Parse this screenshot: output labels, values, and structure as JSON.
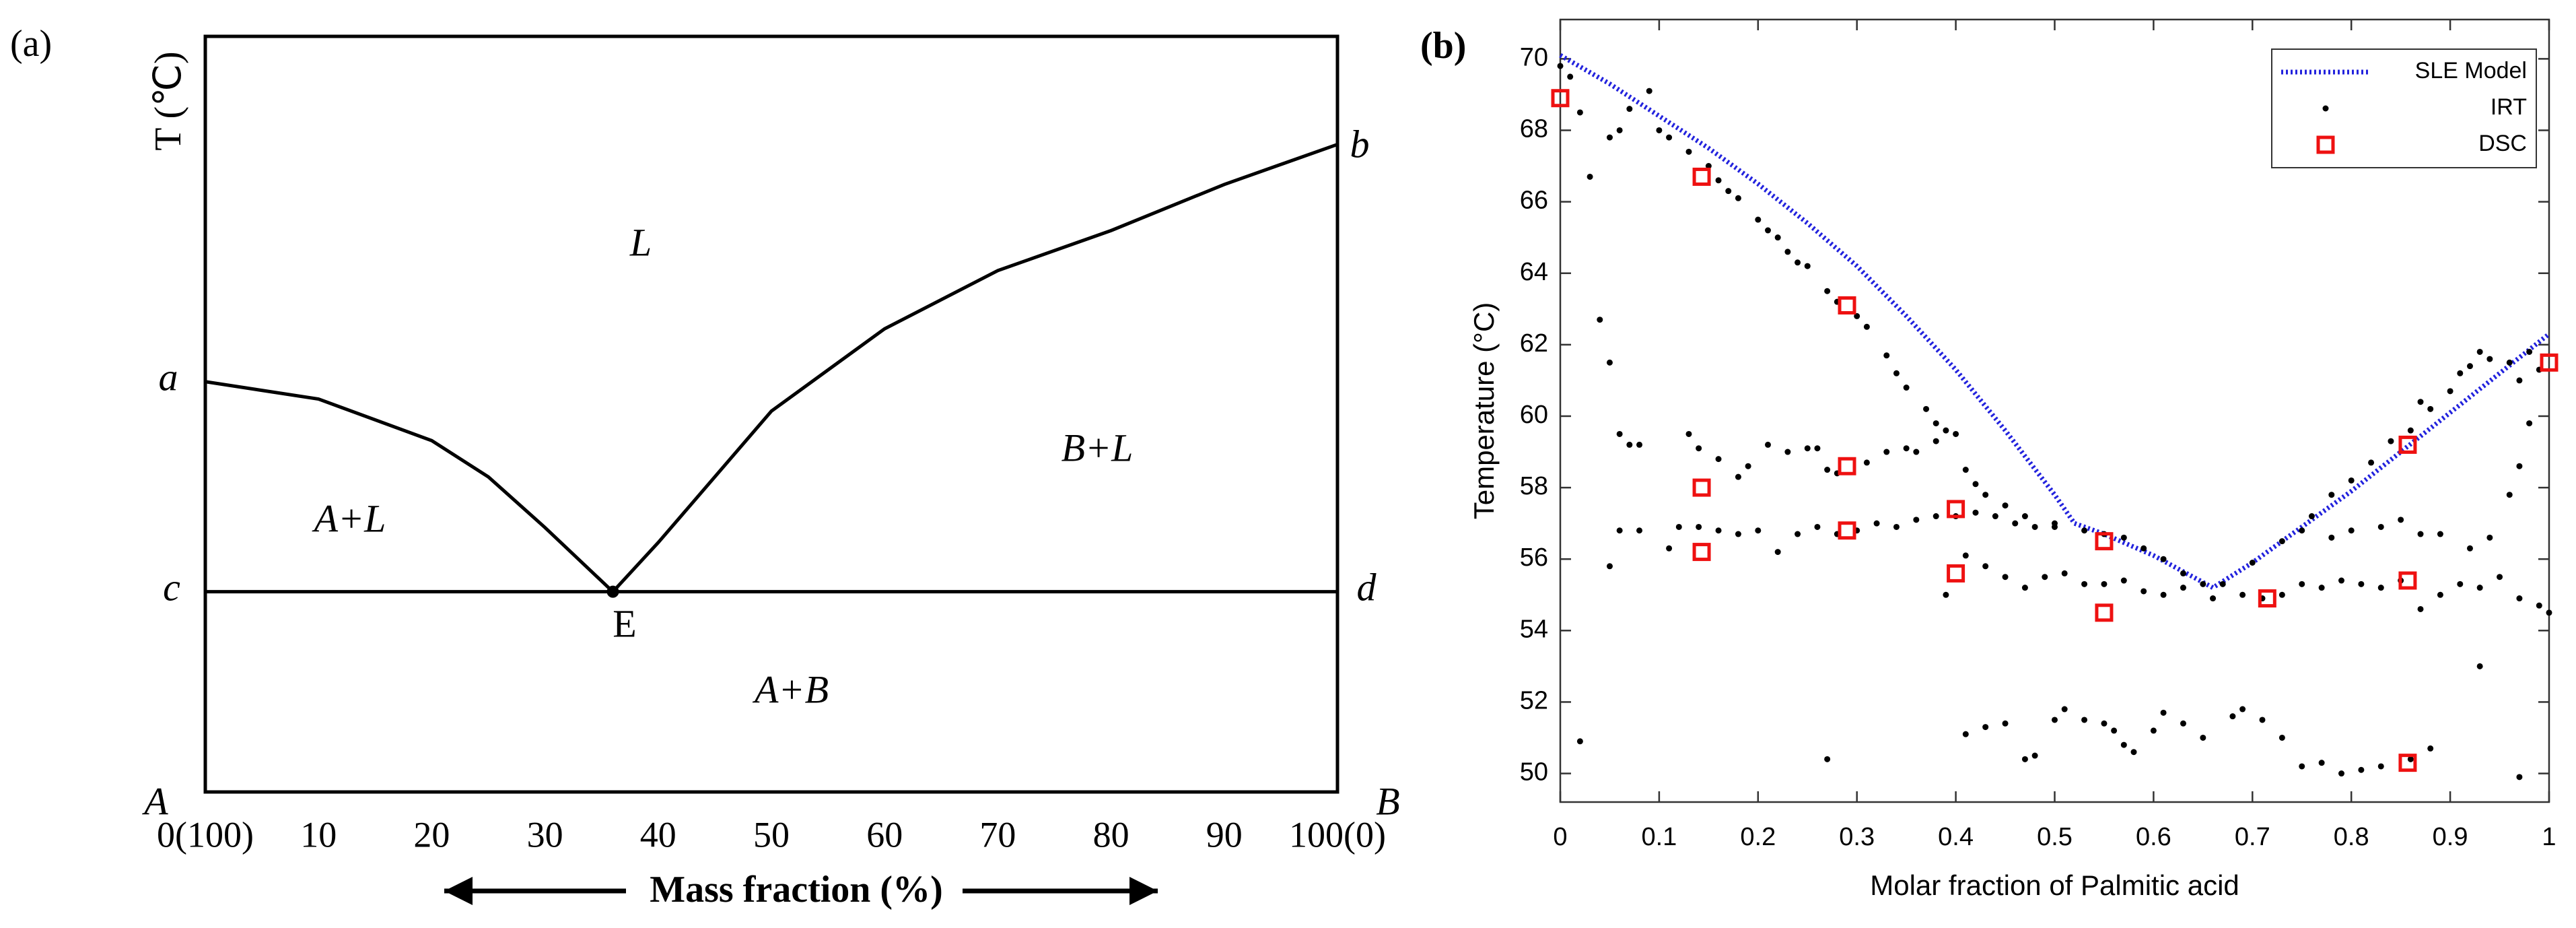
{
  "chart_data": [
    {
      "type": "phase-diagram",
      "panel": "(a)",
      "ylabel": "T (℃)",
      "xlabel": "Mass fraction (%)",
      "xlim": [
        0,
        100
      ],
      "ylim": [
        0,
        100
      ],
      "xticks": [
        {
          "value": 0,
          "label": "0(100)"
        },
        10,
        20,
        30,
        40,
        50,
        60,
        70,
        80,
        90,
        {
          "value": 100,
          "label": "100(0)"
        }
      ],
      "series": [
        {
          "color": "#000000",
          "x": [
            0,
            10,
            20,
            25,
            30,
            36
          ],
          "values": [
            54.3,
            52,
            46.5,
            41.7,
            35,
            26.5
          ]
        },
        {
          "color": "#000000",
          "x": [
            36,
            40,
            50,
            60,
            70,
            80,
            90,
            100
          ],
          "values": [
            26.5,
            33,
            50.4,
            61.3,
            69,
            74.3,
            80.4,
            85.7
          ]
        },
        {
          "color": "#000000",
          "x": [
            0,
            100
          ],
          "values": [
            26.5,
            26.5
          ]
        },
        {
          "color": "#000000",
          "marker": true,
          "x": [
            36
          ],
          "values": [
            26.5
          ]
        }
      ],
      "annotations": [
        "a",
        "b",
        "c",
        "d",
        "E",
        "L",
        "A+L",
        "B+L",
        "A+B",
        "A",
        "B"
      ]
    },
    {
      "type": "scatter",
      "panel": "(b)",
      "ylabel": "Temperature (°C)",
      "xlabel": "Molar fraction of Palmitic acid",
      "xlim": [
        0,
        1
      ],
      "ylim": [
        49.2,
        71.1
      ],
      "xticks": [
        0,
        0.1,
        0.2,
        0.3,
        0.4,
        0.5,
        0.6,
        0.7,
        0.8,
        0.9,
        1
      ],
      "yticks": [
        50,
        52,
        54,
        56,
        58,
        60,
        62,
        64,
        66,
        68,
        70
      ],
      "legend": "upper right",
      "series": [
        {
          "name": "SLE Model",
          "style": "dotted-line",
          "color": "#2222dd",
          "x": [
            0,
            0.05,
            0.1,
            0.15,
            0.2,
            0.25,
            0.3,
            0.35,
            0.4,
            0.45,
            0.5,
            0.52,
            0.55,
            0.6,
            0.66,
            0.7,
            0.75,
            0.8,
            0.85,
            0.9,
            0.95,
            1
          ],
          "values": [
            70.1,
            69.3,
            68.4,
            67.5,
            66.5,
            65.4,
            64.2,
            62.8,
            61.3,
            59.6,
            57.8,
            57.0,
            56.7,
            56.1,
            55.2,
            55.9,
            56.9,
            57.9,
            59.0,
            60.1,
            61.2,
            62.3
          ]
        },
        {
          "name": "IRT",
          "style": "dot",
          "color": "#000000",
          "x": [
            0,
            0.01,
            0.02,
            0.03,
            0.05,
            0.06,
            0.07,
            0.09,
            0.1,
            0.11,
            0.13,
            0.15,
            0.16,
            0.17,
            0.18,
            0.2,
            0.21,
            0.22,
            0.23,
            0.24,
            0.25,
            0.27,
            0.28,
            0.3,
            0.31,
            0.33,
            0.34,
            0.35,
            0.37,
            0.38,
            0.41,
            0.42,
            0.43,
            0.45,
            0.47,
            0.5,
            0.53,
            0.55,
            0.57,
            0.59,
            0.61,
            0.63,
            0.65,
            0.67,
            0.7,
            0.73,
            0.76,
            0.78,
            0.8,
            0.82,
            0.84,
            0.86,
            0.87,
            0.88,
            0.9,
            0.91,
            0.92,
            0.93,
            0.94,
            0.96,
            0.97,
            0.98,
            0.99,
            0.06,
            0.07,
            0.08,
            0.13,
            0.14,
            0.16,
            0.18,
            0.19,
            0.21,
            0.23,
            0.25,
            0.26,
            0.27,
            0.28,
            0.31,
            0.33,
            0.35,
            0.36,
            0.38,
            0.39,
            0.4,
            0.05,
            0.06,
            0.08,
            0.11,
            0.12,
            0.14,
            0.16,
            0.18,
            0.2,
            0.22,
            0.24,
            0.26,
            0.28,
            0.3,
            0.32,
            0.34,
            0.36,
            0.38,
            0.4,
            0.42,
            0.44,
            0.46,
            0.48,
            0.5,
            0.39,
            0.41,
            0.43,
            0.45,
            0.47,
            0.49,
            0.51,
            0.53,
            0.55,
            0.57,
            0.59,
            0.61,
            0.63,
            0.66,
            0.69,
            0.71,
            0.73,
            0.75,
            0.77,
            0.79,
            0.81,
            0.83,
            0.85,
            0.87,
            0.89,
            0.91,
            0.93,
            0.95,
            0.97,
            0.99,
            1.0,
            0.75,
            0.78,
            0.8,
            0.83,
            0.85,
            0.87,
            0.89,
            0.92,
            0.94,
            0.96,
            0.97,
            0.98,
            0.02,
            0.27,
            0.41,
            0.43,
            0.45,
            0.47,
            0.48,
            0.5,
            0.51,
            0.53,
            0.55,
            0.56,
            0.57,
            0.58,
            0.6,
            0.61,
            0.63,
            0.65,
            0.68,
            0.69,
            0.71,
            0.73,
            0.75,
            0.77,
            0.79,
            0.81,
            0.83,
            0.86,
            0.88,
            0.93,
            0.97,
            0.04,
            0.05
          ],
          "values": [
            69.8,
            69.5,
            68.5,
            66.7,
            67.8,
            68.0,
            68.6,
            69.1,
            68.0,
            67.8,
            67.4,
            67.0,
            66.6,
            66.3,
            66.1,
            65.5,
            65.2,
            65.0,
            64.6,
            64.3,
            64.2,
            63.5,
            63.2,
            62.8,
            62.5,
            61.7,
            61.2,
            60.8,
            60.2,
            59.8,
            58.5,
            58.1,
            57.8,
            57.5,
            57.2,
            57.0,
            56.8,
            56.7,
            56.6,
            56.3,
            56.0,
            55.6,
            55.3,
            55.3,
            55.9,
            56.5,
            57.2,
            57.8,
            58.2,
            58.7,
            59.3,
            59.6,
            60.4,
            60.2,
            60.7,
            61.2,
            61.4,
            61.8,
            61.6,
            61.5,
            61.0,
            61.8,
            61.3,
            59.5,
            59.2,
            59.2,
            59.5,
            59.1,
            58.8,
            58.3,
            58.6,
            59.2,
            59.0,
            59.1,
            59.1,
            58.5,
            58.4,
            58.7,
            59.0,
            59.1,
            59.0,
            59.3,
            59.6,
            59.5,
            55.8,
            56.8,
            56.8,
            56.3,
            56.9,
            56.9,
            56.8,
            56.7,
            56.8,
            56.2,
            56.7,
            56.9,
            56.7,
            56.8,
            57.0,
            56.9,
            57.1,
            57.2,
            57.2,
            57.3,
            57.2,
            57.0,
            56.9,
            56.9,
            55.0,
            56.1,
            55.8,
            55.5,
            55.2,
            55.5,
            55.6,
            55.3,
            55.3,
            55.4,
            55.1,
            55.0,
            55.2,
            54.9,
            55.0,
            54.9,
            55.0,
            55.3,
            55.2,
            55.4,
            55.3,
            55.2,
            55.4,
            54.6,
            55.0,
            55.3,
            55.2,
            55.5,
            54.9,
            54.7,
            54.5,
            56.8,
            56.6,
            56.8,
            56.9,
            57.1,
            56.7,
            56.7,
            56.3,
            56.6,
            57.8,
            58.6,
            59.8,
            50.9,
            50.4,
            51.1,
            51.3,
            51.4,
            50.4,
            50.5,
            51.5,
            51.8,
            51.5,
            51.4,
            51.2,
            50.8,
            50.6,
            51.2,
            51.7,
            51.4,
            51.0,
            51.6,
            51.8,
            51.5,
            51.0,
            50.2,
            50.3,
            50.0,
            50.1,
            50.2,
            50.4,
            50.7,
            53.0,
            49.9,
            62.7,
            61.5
          ]
        },
        {
          "name": "DSC",
          "style": "square",
          "color": "#ee1111",
          "x": [
            0,
            0.143,
            0.143,
            0.143,
            0.29,
            0.29,
            0.29,
            0.4,
            0.4,
            0.55,
            0.55,
            0.715,
            0.857,
            0.857,
            0.857,
            1
          ],
          "values": [
            68.9,
            66.7,
            58.0,
            56.2,
            63.1,
            58.6,
            56.8,
            57.4,
            55.6,
            56.5,
            54.5,
            54.9,
            59.2,
            55.4,
            50.3,
            61.5
          ]
        }
      ]
    }
  ]
}
